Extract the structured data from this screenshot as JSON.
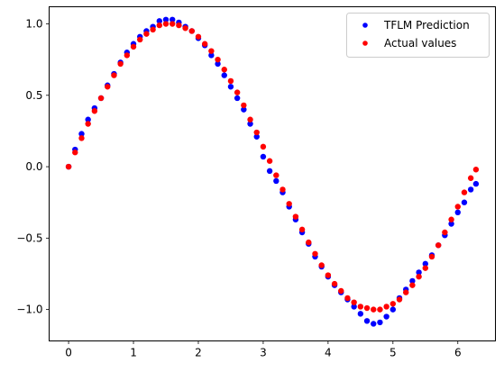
{
  "chart_data": {
    "type": "scatter",
    "title": "",
    "xlabel": "",
    "ylabel": "",
    "xlim": [
      -0.3,
      6.58
    ],
    "ylim": [
      -1.22,
      1.12
    ],
    "xticks": [
      0,
      1,
      2,
      3,
      4,
      5,
      6
    ],
    "xtick_labels": [
      "0",
      "1",
      "2",
      "3",
      "4",
      "5",
      "6"
    ],
    "yticks": [
      -1.0,
      -0.5,
      0.0,
      0.5,
      1.0
    ],
    "ytick_labels": [
      "−1.0",
      "−0.5",
      "0.0",
      "0.5",
      "1.0"
    ],
    "grid": false,
    "legend_position": "upper-right",
    "series": [
      {
        "name": "TFLM Prediction",
        "color": "#0000ff",
        "marker": "circle",
        "x": [
          0.0,
          0.1,
          0.2,
          0.3,
          0.4,
          0.5,
          0.6,
          0.7,
          0.8,
          0.9,
          1.0,
          1.1,
          1.2,
          1.3,
          1.4,
          1.5,
          1.6,
          1.7,
          1.8,
          1.9,
          2.0,
          2.1,
          2.2,
          2.3,
          2.4,
          2.5,
          2.6,
          2.7,
          2.8,
          2.9,
          3.0,
          3.1,
          3.2,
          3.3,
          3.4,
          3.5,
          3.6,
          3.7,
          3.8,
          3.9,
          4.0,
          4.1,
          4.2,
          4.3,
          4.4,
          4.5,
          4.6,
          4.7,
          4.8,
          4.9,
          5.0,
          5.1,
          5.2,
          5.3,
          5.4,
          5.5,
          5.6,
          5.7,
          5.8,
          5.9,
          6.0,
          6.1,
          6.2,
          6.28
        ],
        "y": [
          0.0,
          0.12,
          0.23,
          0.33,
          0.41,
          0.48,
          0.57,
          0.65,
          0.73,
          0.8,
          0.86,
          0.91,
          0.95,
          0.98,
          1.02,
          1.03,
          1.03,
          1.01,
          0.98,
          0.95,
          0.9,
          0.85,
          0.78,
          0.72,
          0.64,
          0.56,
          0.48,
          0.4,
          0.3,
          0.21,
          0.07,
          -0.03,
          -0.1,
          -0.18,
          -0.28,
          -0.37,
          -0.46,
          -0.54,
          -0.63,
          -0.7,
          -0.77,
          -0.83,
          -0.88,
          -0.93,
          -0.98,
          -1.03,
          -1.08,
          -1.1,
          -1.09,
          -1.05,
          -1.0,
          -0.92,
          -0.86,
          -0.8,
          -0.74,
          -0.68,
          -0.62,
          -0.55,
          -0.48,
          -0.4,
          -0.32,
          -0.25,
          -0.16,
          -0.12
        ]
      },
      {
        "name": "Actual values",
        "color": "#ff0000",
        "marker": "circle",
        "x": [
          0.0,
          0.1,
          0.2,
          0.3,
          0.4,
          0.5,
          0.6,
          0.7,
          0.8,
          0.9,
          1.0,
          1.1,
          1.2,
          1.3,
          1.4,
          1.5,
          1.6,
          1.7,
          1.8,
          1.9,
          2.0,
          2.1,
          2.2,
          2.3,
          2.4,
          2.5,
          2.6,
          2.7,
          2.8,
          2.9,
          3.0,
          3.1,
          3.2,
          3.3,
          3.4,
          3.5,
          3.6,
          3.7,
          3.8,
          3.9,
          4.0,
          4.1,
          4.2,
          4.3,
          4.4,
          4.5,
          4.6,
          4.7,
          4.8,
          4.9,
          5.0,
          5.1,
          5.2,
          5.3,
          5.4,
          5.5,
          5.6,
          5.7,
          5.8,
          5.9,
          6.0,
          6.1,
          6.2,
          6.28
        ],
        "y": [
          0.0,
          0.1,
          0.2,
          0.3,
          0.39,
          0.48,
          0.56,
          0.64,
          0.72,
          0.78,
          0.84,
          0.89,
          0.93,
          0.96,
          0.99,
          1.0,
          1.0,
          0.99,
          0.97,
          0.95,
          0.91,
          0.86,
          0.81,
          0.75,
          0.68,
          0.6,
          0.52,
          0.43,
          0.33,
          0.24,
          0.14,
          0.04,
          -0.06,
          -0.16,
          -0.26,
          -0.35,
          -0.44,
          -0.53,
          -0.61,
          -0.69,
          -0.76,
          -0.82,
          -0.87,
          -0.92,
          -0.95,
          -0.98,
          -0.99,
          -1.0,
          -1.0,
          -0.98,
          -0.96,
          -0.93,
          -0.88,
          -0.83,
          -0.77,
          -0.71,
          -0.63,
          -0.55,
          -0.46,
          -0.37,
          -0.28,
          -0.18,
          -0.08,
          -0.02
        ]
      }
    ]
  }
}
